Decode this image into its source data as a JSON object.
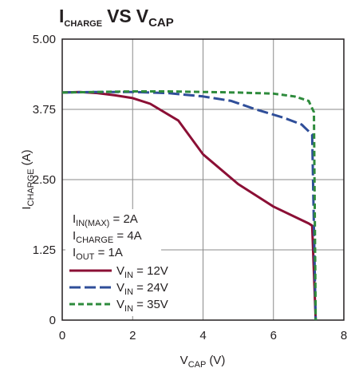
{
  "chart_data": {
    "type": "line",
    "title": {
      "main": "I",
      "sub": "CHARGE",
      "vs": "VS",
      "main2": "V",
      "sub2": "CAP"
    },
    "xlabel": {
      "main": "V",
      "sub": "CAP",
      "unit": "(V)"
    },
    "ylabel": {
      "main": "I",
      "sub": "CHARGE",
      "unit": "(A)"
    },
    "xlim": [
      0,
      8
    ],
    "ylim": [
      0,
      5
    ],
    "x_ticks": [
      "0",
      "2",
      "4",
      "6",
      "8"
    ],
    "y_ticks": [
      "0",
      "1.25",
      "2.50",
      "3.75",
      "5.00"
    ],
    "grid": true,
    "annotations": [
      {
        "main": "I",
        "sub": "IN(MAX)",
        "rest": " = 2A"
      },
      {
        "main": "I",
        "sub": "CHARGE",
        "rest": " = 4A"
      },
      {
        "main": "I",
        "sub": "OUT",
        "rest": " = 1A"
      }
    ],
    "legend_position": "bottom-left",
    "series": [
      {
        "name": {
          "main": "V",
          "sub": "IN",
          "rest": " = 12V"
        },
        "color": "#8b0f35",
        "dash": "solid",
        "points": [
          [
            0,
            4.05
          ],
          [
            0.5,
            4.06
          ],
          [
            1.0,
            4.04
          ],
          [
            1.5,
            4.0
          ],
          [
            2.0,
            3.95
          ],
          [
            2.5,
            3.85
          ],
          [
            3.3,
            3.55
          ],
          [
            4.0,
            2.95
          ],
          [
            5.0,
            2.42
          ],
          [
            6.0,
            2.02
          ],
          [
            7.0,
            1.72
          ],
          [
            7.1,
            1.68
          ],
          [
            7.2,
            0
          ]
        ]
      },
      {
        "name": {
          "main": "V",
          "sub": "IN",
          "rest": " = 24V"
        },
        "color": "#2f4e99",
        "dash": "long-dash",
        "points": [
          [
            0,
            4.05
          ],
          [
            1.0,
            4.06
          ],
          [
            2.0,
            4.06
          ],
          [
            3.0,
            4.04
          ],
          [
            4.0,
            3.98
          ],
          [
            4.8,
            3.9
          ],
          [
            5.5,
            3.75
          ],
          [
            6.3,
            3.6
          ],
          [
            6.8,
            3.48
          ],
          [
            7.1,
            3.3
          ],
          [
            7.2,
            0
          ]
        ]
      },
      {
        "name": {
          "main": "V",
          "sub": "IN",
          "rest": " = 35V"
        },
        "color": "#2e8b3c",
        "dash": "short-dash",
        "points": [
          [
            0,
            4.05
          ],
          [
            1.0,
            4.06
          ],
          [
            2.0,
            4.07
          ],
          [
            3.0,
            4.07
          ],
          [
            4.0,
            4.06
          ],
          [
            5.0,
            4.05
          ],
          [
            6.0,
            4.03
          ],
          [
            6.6,
            3.98
          ],
          [
            7.0,
            3.9
          ],
          [
            7.15,
            3.7
          ],
          [
            7.2,
            0
          ]
        ]
      }
    ]
  }
}
